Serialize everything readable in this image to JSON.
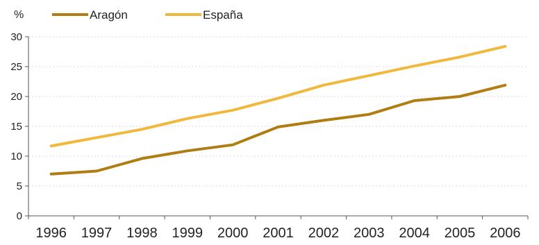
{
  "chart_data": {
    "type": "line",
    "title": "",
    "xlabel": "",
    "ylabel": "%",
    "x": [
      "1996",
      "1997",
      "1998",
      "1999",
      "2000",
      "2001",
      "2002",
      "2003",
      "2004",
      "2005",
      "2006"
    ],
    "ylim": [
      0,
      30
    ],
    "yticks": [
      "0",
      "5",
      "10",
      "15",
      "20",
      "25",
      "30"
    ],
    "grid": true,
    "legend": "top-left",
    "series": [
      {
        "name": "Aragón",
        "color": "#b07d12",
        "values": [
          7.0,
          7.5,
          9.6,
          10.9,
          11.9,
          14.9,
          16.0,
          17.0,
          19.3,
          20.0,
          21.9
        ]
      },
      {
        "name": "España",
        "color": "#f0b93c",
        "values": [
          11.7,
          13.1,
          14.5,
          16.3,
          17.7,
          19.7,
          21.9,
          23.5,
          25.1,
          26.6,
          28.4
        ]
      }
    ]
  }
}
